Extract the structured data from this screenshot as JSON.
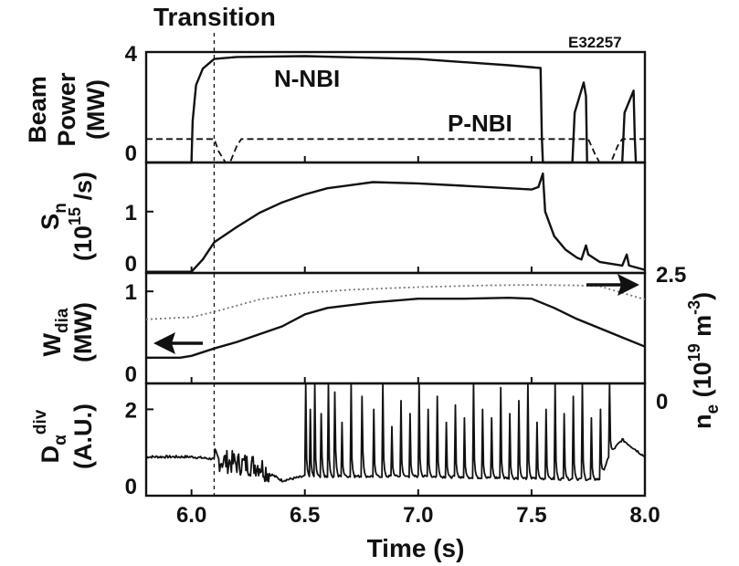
{
  "chart_data": {
    "type": "line",
    "top_label": "Transition",
    "shot_label": "E32257",
    "xlabel": "Time (s)",
    "xlim": [
      5.8,
      8.0
    ],
    "xticks": [
      "6.0",
      "6.5",
      "7.0",
      "7.5",
      "8.0"
    ],
    "transition_time": 6.1,
    "panels": [
      {
        "ylabel_line1": "Beam",
        "ylabel_line2": "Power",
        "ylabel_line3": "(MW)",
        "ylim": [
          0,
          4
        ],
        "yticks": [
          "0",
          "4"
        ],
        "series": [
          {
            "name": "N-NBI",
            "style": "solid",
            "x": [
              5.8,
              6.0,
              6.005,
              6.02,
              6.05,
              6.1,
              6.2,
              6.5,
              7.0,
              7.4,
              7.54,
              7.545,
              7.55,
              7.68,
              7.69,
              7.73,
              7.74,
              7.745,
              7.9,
              7.91,
              7.95,
              7.955,
              7.96,
              8.0
            ],
            "y": [
              0,
              0,
              1.5,
              2.8,
              3.4,
              3.75,
              3.82,
              3.85,
              3.75,
              3.52,
              3.42,
              1.0,
              0,
              0,
              1.8,
              2.9,
              2.4,
              0,
              0,
              1.8,
              2.6,
              1.0,
              0,
              0
            ]
          },
          {
            "name": "P-NBI",
            "style": "dashed",
            "x": [
              5.8,
              6.1,
              6.12,
              6.15,
              6.17,
              6.2,
              6.22,
              6.25,
              7.75,
              7.78,
              7.8,
              7.85,
              7.88,
              7.9,
              8.0
            ],
            "y": [
              0.85,
              0.85,
              0.4,
              0,
              0,
              0.6,
              0.85,
              0.85,
              0.85,
              0.3,
              0,
              0,
              0.6,
              0.85,
              0.85
            ]
          }
        ]
      },
      {
        "ylabel_line1": "S",
        "ylabel_sub": "n",
        "ylabel_line2": "(10",
        "ylabel_sup": "15",
        "ylabel_tail": " /s)",
        "ylim": [
          0,
          1.8
        ],
        "yticks": [
          "0",
          "1"
        ],
        "series": [
          {
            "style": "solid",
            "x": [
              5.8,
              6.0,
              6.05,
              6.1,
              6.2,
              6.3,
              6.4,
              6.5,
              6.6,
              6.8,
              7.0,
              7.2,
              7.4,
              7.5,
              7.53,
              7.55,
              7.56,
              7.6,
              7.65,
              7.7,
              7.72,
              7.74,
              7.75,
              7.8,
              7.9,
              7.92,
              7.93,
              8.0
            ],
            "y": [
              0.02,
              0.02,
              0.22,
              0.5,
              0.75,
              0.98,
              1.15,
              1.28,
              1.38,
              1.48,
              1.46,
              1.42,
              1.38,
              1.36,
              1.4,
              1.62,
              1.0,
              0.6,
              0.38,
              0.25,
              0.22,
              0.45,
              0.3,
              0.18,
              0.12,
              0.3,
              0.12,
              0.05
            ]
          }
        ]
      },
      {
        "ylabel_line1": "W",
        "ylabel_sub": "dia",
        "ylabel_line2": "(MW)",
        "ylim": [
          0,
          1.2
        ],
        "yticks": [
          "0",
          "1"
        ],
        "right_label": "n",
        "right_label_sub": "e",
        "right_label_tail": " (10",
        "right_label_sup": "19",
        "right_label_end": " m",
        "right_label_sup2": "-3",
        "right_label_close": ")",
        "right_ylim": [
          0,
          2.5
        ],
        "right_yticks": [
          "0",
          "2.5"
        ],
        "series": [
          {
            "style": "solid",
            "axis": "left",
            "x": [
              5.8,
              5.95,
              6.0,
              6.1,
              6.2,
              6.4,
              6.5,
              6.6,
              6.8,
              7.0,
              7.2,
              7.4,
              7.5,
              7.6,
              7.7,
              7.8,
              7.9,
              8.0
            ],
            "y": [
              0.28,
              0.28,
              0.3,
              0.38,
              0.45,
              0.62,
              0.75,
              0.82,
              0.88,
              0.92,
              0.92,
              0.93,
              0.92,
              0.82,
              0.7,
              0.6,
              0.5,
              0.4
            ]
          },
          {
            "style": "dotted",
            "axis": "right",
            "x": [
              5.8,
              6.0,
              6.1,
              6.3,
              6.5,
              6.7,
              7.0,
              7.3,
              7.5,
              7.7,
              7.8,
              7.9,
              8.0
            ],
            "y": [
              1.45,
              1.5,
              1.62,
              1.9,
              2.05,
              2.12,
              2.18,
              2.22,
              2.23,
              2.22,
              2.2,
              2.05,
              1.9
            ]
          }
        ]
      },
      {
        "ylabel_line1": "D",
        "ylabel_sub": "α",
        "ylabel_sup": "div",
        "ylabel_line2": "(A.U.)",
        "ylim": [
          0,
          2.6
        ],
        "yticks": [
          "0",
          "2"
        ],
        "series": [
          {
            "style": "solid",
            "baseline": [
              [
                5.8,
                0.9
              ],
              [
                6.0,
                0.9
              ],
              [
                6.1,
                0.85
              ],
              [
                6.2,
                0.75
              ],
              [
                6.3,
                0.7
              ],
              [
                6.35,
                0.5
              ],
              [
                6.4,
                0.35
              ],
              [
                6.5,
                0.45
              ],
              [
                7.0,
                0.45
              ],
              [
                7.5,
                0.4
              ],
              [
                7.8,
                0.38
              ],
              [
                7.85,
                1.0
              ],
              [
                7.9,
                1.3
              ],
              [
                8.0,
                0.9
              ]
            ],
            "noise_region": [
              6.1,
              6.35
            ],
            "elm_times": [
              6.5,
              6.52,
              6.54,
              6.57,
              6.6,
              6.63,
              6.66,
              6.7,
              6.75,
              6.8,
              6.84,
              6.88,
              6.92,
              6.96,
              7.0,
              7.04,
              7.08,
              7.12,
              7.16,
              7.2,
              7.24,
              7.28,
              7.32,
              7.36,
              7.4,
              7.44,
              7.48,
              7.52,
              7.56,
              7.6,
              7.64,
              7.68,
              7.72,
              7.76,
              7.8,
              7.84
            ],
            "elm_heights": [
              2.6,
              2.0,
              2.6,
              1.9,
              2.6,
              2.4,
              1.7,
              2.6,
              2.3,
              2.0,
              2.6,
              1.6,
              2.2,
              1.9,
              2.6,
              2.0,
              2.3,
              1.7,
              2.1,
              1.8,
              2.6,
              2.0,
              1.8,
              2.5,
              1.9,
              2.2,
              2.6,
              1.7,
              2.0,
              2.6,
              1.9,
              2.3,
              2.6,
              1.8,
              2.0,
              2.6
            ]
          }
        ]
      }
    ]
  }
}
